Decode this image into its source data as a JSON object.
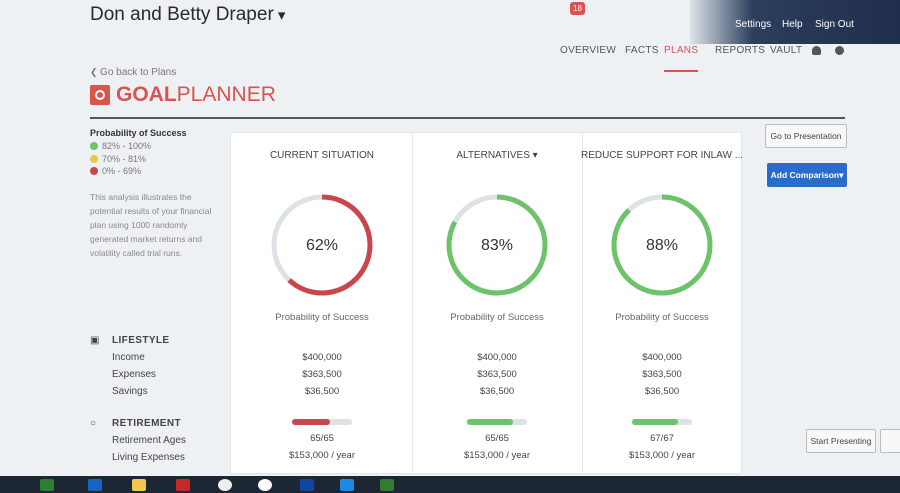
{
  "header": {
    "title": "Don and Betty Draper",
    "badge": "18",
    "links": [
      "Settings",
      "Help",
      "Sign Out"
    ],
    "tabs": [
      "OVERVIEW",
      "FACTS",
      "PLANS",
      "REPORTS",
      "VAULT"
    ]
  },
  "back_link": "Go back to Plans",
  "logo": {
    "bold": "GOAL",
    "light": "PLANNER"
  },
  "legend": {
    "title": "Probability of Success",
    "items": [
      {
        "label": "82% - 100%",
        "color": "#6cc36a"
      },
      {
        "label": "70% - 81%",
        "color": "#e8c94a"
      },
      {
        "label": "0% - 69%",
        "color": "#c9474c"
      }
    ]
  },
  "description": "This analysis illustrates the potential results of your financial plan using 1000 randomly generated market returns and volatility called trial runs.",
  "buttons": {
    "presentation": "Go to Presentation",
    "add_comparison": "Add Comparison",
    "start_presenting": "Start Presenting"
  },
  "rows": {
    "lifestyle": "LIFESTYLE",
    "income": "Income",
    "expenses": "Expenses",
    "savings": "Savings",
    "retirement": "RETIREMENT",
    "retirement_ages": "Retirement Ages",
    "living_expenses": "Living Expenses"
  },
  "scenarios": [
    {
      "name": "CURRENT SITUATION",
      "probability": 62,
      "probability_label": "62%",
      "color": "#c9474c",
      "caption": "Probability of Success",
      "income": "$400,000",
      "expenses": "$363,500",
      "savings": "$36,500",
      "retirement_ages": "65/65",
      "living_expenses": "$153,000 / year"
    },
    {
      "name": "ALTERNATIVES",
      "probability": 83,
      "probability_label": "83%",
      "color": "#6cc36a",
      "caption": "Probability of Success",
      "income": "$400,000",
      "expenses": "$363,500",
      "savings": "$36,500",
      "retirement_ages": "65/65",
      "living_expenses": "$153,000 / year"
    },
    {
      "name": "REDUCE SUPPORT FOR INLAW ...",
      "probability": 88,
      "probability_label": "88%",
      "color": "#6cc36a",
      "caption": "Probability of Success",
      "income": "$400,000",
      "expenses": "$363,500",
      "savings": "$36,500",
      "retirement_ages": "67/67",
      "living_expenses": "$153,000 / year"
    }
  ]
}
